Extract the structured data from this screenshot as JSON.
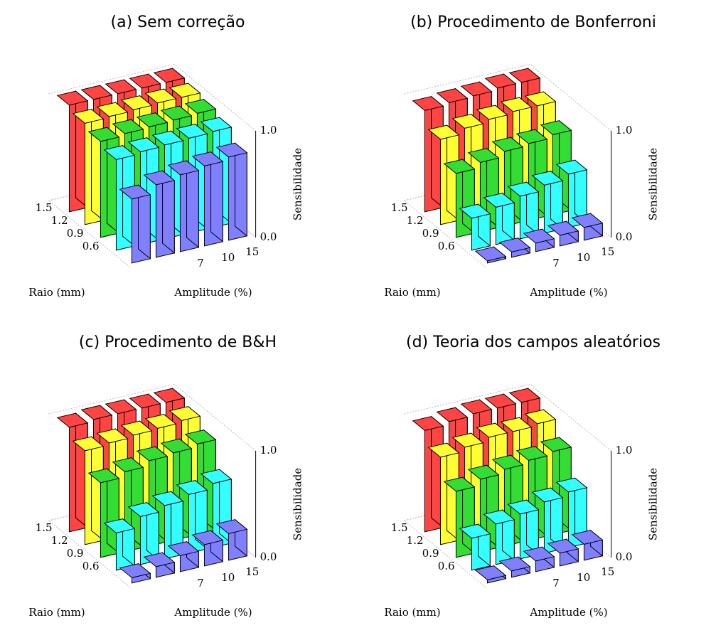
{
  "chart_data": [
    {
      "type": "bar3d",
      "title": "(a) Sem correção",
      "xlabel": "Raio (mm)",
      "ylabel": "Amplitude (%)",
      "zlabel": "Sensibilidade",
      "categories": [
        null,
        null,
        "7",
        "10",
        "15"
      ],
      "rows": [
        null,
        "0.6",
        "0.9",
        "1.2",
        "1.5"
      ],
      "zlim": [
        0,
        1
      ],
      "zticks": [
        {
          "value": 0,
          "label": "0.0"
        },
        {
          "value": 1,
          "label": "1.0"
        }
      ],
      "series": [
        {
          "color": "#8080ff",
          "values": [
            0.6,
            0.68,
            0.72,
            0.75,
            0.78
          ]
        },
        {
          "color": "#33ffff",
          "values": [
            0.85,
            0.87,
            0.88,
            0.89,
            0.9
          ]
        },
        {
          "color": "#33dd33",
          "values": [
            0.9,
            0.92,
            0.93,
            0.94,
            0.95
          ]
        },
        {
          "color": "#ffff33",
          "values": [
            0.95,
            0.96,
            0.97,
            0.98,
            0.98
          ]
        },
        {
          "color": "#ff4444",
          "values": [
            1,
            1,
            1,
            1,
            1
          ]
        }
      ]
    },
    {
      "type": "bar3d",
      "title": "(b) Procedimento de Bonferroni",
      "xlabel": "Raio (mm)",
      "ylabel": "Amplitude (%)",
      "zlabel": "Sensibilidade",
      "categories": [
        null,
        null,
        "7",
        "10",
        "15"
      ],
      "rows": [
        null,
        "0.6",
        "0.9",
        "1.2",
        "1.5"
      ],
      "zlim": [
        0,
        1
      ],
      "zticks": [
        {
          "value": 0,
          "label": "0.0"
        },
        {
          "value": 1,
          "label": "1.0"
        }
      ],
      "series": [
        {
          "color": "#8080ff",
          "values": [
            0.02,
            0.05,
            0.08,
            0.1,
            0.12
          ]
        },
        {
          "color": "#33ffff",
          "values": [
            0.3,
            0.35,
            0.4,
            0.45,
            0.5
          ]
        },
        {
          "color": "#33dd33",
          "values": [
            0.6,
            0.65,
            0.7,
            0.72,
            0.75
          ]
        },
        {
          "color": "#ffff33",
          "values": [
            0.8,
            0.85,
            0.88,
            0.9,
            0.9
          ]
        },
        {
          "color": "#ff4444",
          "values": [
            0.95,
            0.97,
            0.98,
            1,
            1
          ]
        }
      ]
    },
    {
      "type": "bar3d",
      "title": "(c) Procedimento de B&H",
      "xlabel": "Raio (mm)",
      "ylabel": "Amplitude (%)",
      "zlabel": "Sensibilidade",
      "categories": [
        null,
        null,
        "7",
        "10",
        "15"
      ],
      "rows": [
        null,
        "0.6",
        "0.9",
        "1.2",
        "1.5"
      ],
      "zlim": [
        0,
        1
      ],
      "zticks": [
        {
          "value": 0,
          "label": "0.0"
        },
        {
          "value": 1,
          "label": "1.0"
        }
      ],
      "series": [
        {
          "color": "#8080ff",
          "values": [
            0.05,
            0.1,
            0.15,
            0.2,
            0.25
          ]
        },
        {
          "color": "#33ffff",
          "values": [
            0.35,
            0.45,
            0.5,
            0.55,
            0.6
          ]
        },
        {
          "color": "#33dd33",
          "values": [
            0.7,
            0.75,
            0.8,
            0.82,
            0.85
          ]
        },
        {
          "color": "#ffff33",
          "values": [
            0.88,
            0.9,
            0.92,
            0.93,
            0.95
          ]
        },
        {
          "color": "#ff4444",
          "values": [
            0.98,
            1,
            1,
            1,
            1
          ]
        }
      ]
    },
    {
      "type": "bar3d",
      "title": "(d) Teoria dos campos aleatórios",
      "xlabel": "Raio (mm)",
      "ylabel": "Amplitude (%)",
      "zlabel": "Sensibilidade",
      "categories": [
        null,
        null,
        "7",
        "10",
        "15"
      ],
      "rows": [
        null,
        "0.6",
        "0.9",
        "1.2",
        "1.5"
      ],
      "zlim": [
        0,
        1
      ],
      "zticks": [
        {
          "value": 0,
          "label": "0.0"
        },
        {
          "value": 1,
          "label": "1.0"
        }
      ],
      "series": [
        {
          "color": "#8080ff",
          "values": [
            0.03,
            0.06,
            0.1,
            0.12,
            0.15
          ]
        },
        {
          "color": "#33ffff",
          "values": [
            0.3,
            0.38,
            0.42,
            0.48,
            0.52
          ]
        },
        {
          "color": "#33dd33",
          "values": [
            0.62,
            0.68,
            0.72,
            0.75,
            0.78
          ]
        },
        {
          "color": "#ffff33",
          "values": [
            0.82,
            0.86,
            0.9,
            0.9,
            0.92
          ]
        },
        {
          "color": "#ff4444",
          "values": [
            0.95,
            0.98,
            1,
            1,
            1
          ]
        }
      ]
    }
  ]
}
